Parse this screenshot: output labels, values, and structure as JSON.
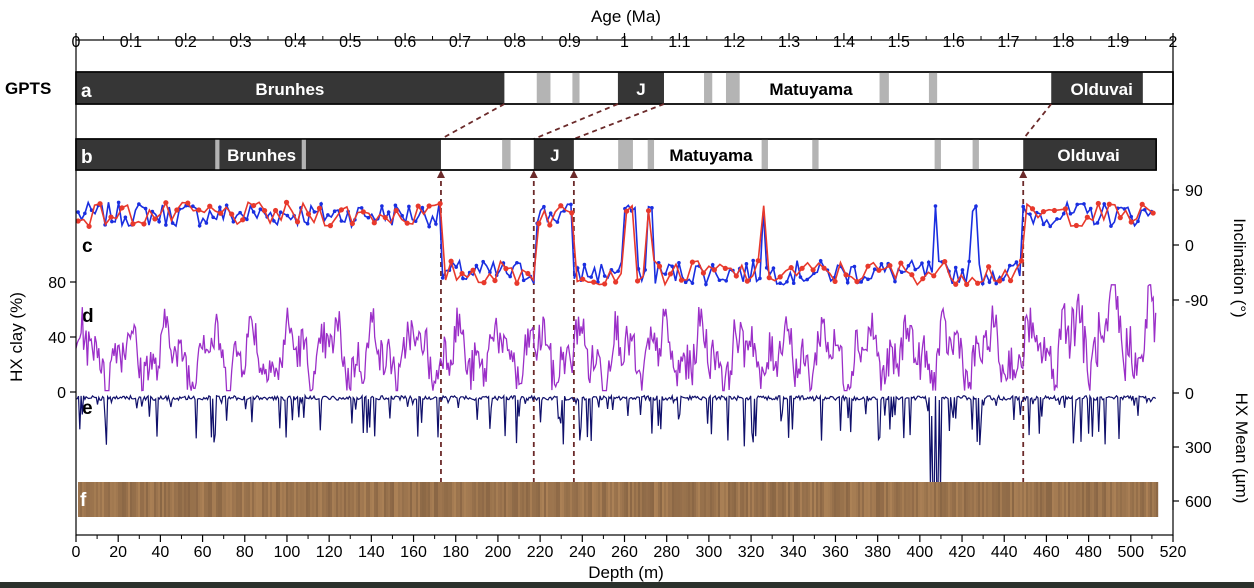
{
  "chart_data": {
    "type": "line",
    "top_axis": {
      "label": "Age (Ma)",
      "ticks": [
        "0",
        "0.1",
        "0.2",
        "0.3",
        "0.4",
        "0.5",
        "0.6",
        "0.7",
        "0.8",
        "0.9",
        "1",
        "1.1",
        "1.2",
        "1.3",
        "1.4",
        "1.5",
        "1.6",
        "1.7",
        "1.8",
        "1.9",
        "2"
      ],
      "range": [
        0,
        2
      ]
    },
    "bottom_axis": {
      "label": "Depth (m)",
      "ticks": [
        "0",
        "20",
        "40",
        "60",
        "80",
        "100",
        "120",
        "140",
        "160",
        "180",
        "200",
        "220",
        "240",
        "260",
        "280",
        "300",
        "320",
        "340",
        "360",
        "380",
        "400",
        "420",
        "440",
        "460",
        "480",
        "500",
        "520"
      ],
      "range": [
        0,
        520
      ]
    },
    "gpts_label": "GPTS",
    "panel_a": {
      "letter": "a",
      "normal_intervals_ma": [
        [
          0,
          0.781
        ],
        [
          0.988,
          1.072
        ],
        [
          1.778,
          1.945
        ]
      ],
      "subchrons_ma": [
        [
          0.84,
          0.865
        ],
        [
          0.905,
          0.918
        ],
        [
          1.145,
          1.16
        ],
        [
          1.185,
          1.21
        ],
        [
          1.465,
          1.482
        ],
        [
          1.555,
          1.57
        ]
      ],
      "labels": [
        {
          "text": "Brunhes",
          "at_ma": 0.39,
          "on_dark": true
        },
        {
          "text": "J",
          "at_ma": 1.03,
          "on_dark": true
        },
        {
          "text": "Matuyama",
          "at_ma": 1.34,
          "on_dark": false
        },
        {
          "text": "Olduvai",
          "at_ma": 1.87,
          "on_dark": true
        }
      ]
    },
    "panel_b": {
      "letter": "b",
      "normal_intervals_m": [
        [
          0,
          173
        ],
        [
          217,
          236
        ],
        [
          449,
          512
        ]
      ],
      "subchrons_m": [
        [
          66,
          68
        ],
        [
          107,
          109
        ],
        [
          202,
          206
        ],
        [
          257,
          264
        ],
        [
          271,
          274
        ],
        [
          325,
          328
        ],
        [
          349,
          352
        ],
        [
          407,
          410
        ],
        [
          425,
          428
        ]
      ],
      "labels": [
        {
          "text": "Brunhes",
          "at_m": 88,
          "on_dark": true
        },
        {
          "text": "J",
          "at_m": 227,
          "on_dark": true
        },
        {
          "text": "Matuyama",
          "at_m": 301,
          "on_dark": false
        },
        {
          "text": "Olduvai",
          "at_m": 480,
          "on_dark": true
        }
      ]
    },
    "tie_lines": [
      {
        "age_ma": 0.781,
        "depth_m": 173
      },
      {
        "age_ma": 0.988,
        "depth_m": 217
      },
      {
        "age_ma": 1.072,
        "depth_m": 236
      },
      {
        "age_ma": 1.778,
        "depth_m": 449
      }
    ],
    "panel_c": {
      "letter": "c",
      "ylabel": "Inclination (°)",
      "yticks": [
        "90",
        "0",
        "-90"
      ],
      "ylim": [
        -110,
        110
      ],
      "series": [
        {
          "color": "#1a2ee0"
        },
        {
          "color": "#e8392c"
        }
      ],
      "polarity_m": [
        [
          0,
          173,
          "N"
        ],
        [
          173,
          217,
          "R"
        ],
        [
          217,
          236,
          "N"
        ],
        [
          236,
          449,
          "R"
        ],
        [
          449,
          512,
          "N"
        ]
      ],
      "excursions_m": [
        [
          260,
          265
        ],
        [
          270,
          273
        ],
        [
          325,
          327
        ],
        [
          407,
          409
        ],
        [
          425,
          427
        ]
      ]
    },
    "panel_d": {
      "letter": "d",
      "ylabel": "HX clay (%)",
      "yticks": [
        "80",
        "40",
        "0"
      ],
      "ylim": [
        0,
        80
      ],
      "color": "#9b2fc8"
    },
    "panel_e": {
      "letter": "e",
      "ylabel": "HX Mean (µm)",
      "yticks": [
        "0",
        "300",
        "600"
      ],
      "ylim": [
        0,
        600
      ],
      "color": "#10106b"
    },
    "panel_f": {
      "letter": "f"
    }
  }
}
